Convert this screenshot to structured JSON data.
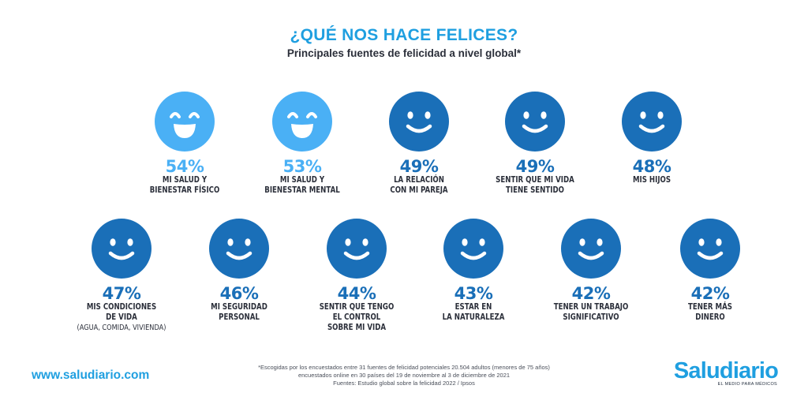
{
  "title": "¿QUÉ NOS HACE FELICES?",
  "subtitle": "Principales fuentes de felicidad a nivel global*",
  "colors": {
    "light": "#4ab0f5",
    "dark": "#1a6fb8",
    "accent": "#1f9fe0"
  },
  "items": [
    {
      "pct": "54%",
      "line1": "MI SALUD Y",
      "line2": "BIENESTAR FÍSICO",
      "line3": "",
      "note": "",
      "style": "big-smile",
      "icon": "laughing-face-icon"
    },
    {
      "pct": "53%",
      "line1": "MI SALUD Y",
      "line2": "BIENESTAR MENTAL",
      "line3": "",
      "note": "",
      "style": "big-smile",
      "icon": "laughing-face-icon"
    },
    {
      "pct": "49%",
      "line1": "LA RELACIÓN",
      "line2": "CON MI PAREJA",
      "line3": "",
      "note": "",
      "style": "smile",
      "icon": "smiley-face-icon"
    },
    {
      "pct": "49%",
      "line1": "SENTIR QUE MI VIDA",
      "line2": "TIENE SENTIDO",
      "line3": "",
      "note": "",
      "style": "smile",
      "icon": "smiley-face-icon"
    },
    {
      "pct": "48%",
      "line1": "MIS HIJOS",
      "line2": "",
      "line3": "",
      "note": "",
      "style": "smile",
      "icon": "smiley-face-icon"
    },
    {
      "pct": "47%",
      "line1": "MIS CONDICIONES",
      "line2": "DE VIDA",
      "line3": "",
      "note": "(AGUA, COMIDA, VIVIENDA)",
      "style": "smile",
      "icon": "smiley-face-icon"
    },
    {
      "pct": "46%",
      "line1": "MI SEGURIDAD",
      "line2": "PERSONAL",
      "line3": "",
      "note": "",
      "style": "smile",
      "icon": "smiley-face-icon"
    },
    {
      "pct": "44%",
      "line1": "SENTIR QUE TENGO",
      "line2": "EL CONTROL",
      "line3": "SOBRE MI VIDA",
      "note": "",
      "style": "smile",
      "icon": "smiley-face-icon"
    },
    {
      "pct": "43%",
      "line1": "ESTAR EN",
      "line2": "LA NATURALEZA",
      "line3": "",
      "note": "",
      "style": "smile",
      "icon": "smiley-face-icon"
    },
    {
      "pct": "42%",
      "line1": "TENER UN TRABAJO",
      "line2": "SIGNIFICATIVO",
      "line3": "",
      "note": "",
      "style": "smile",
      "icon": "smiley-face-icon"
    },
    {
      "pct": "42%",
      "line1": "TENER MÁS",
      "line2": "DINERO",
      "line3": "",
      "note": "",
      "style": "smile",
      "icon": "smiley-face-icon"
    }
  ],
  "footer": {
    "website": "www.saludiario.com",
    "footnote1": "*Escogidas por los encuestados entre 31 fuentes de felicidad potenciales 20.504 adultos (menores de 75 años)",
    "footnote2": "encuestados online en 30 países del 19 de noviembre al 3 de diciembre de 2021",
    "footnote3": "Fuentes: Estudio global sobre la felicidad 2022 / Ipsos",
    "brand": "Saludiario",
    "tagline": "EL MEDIO PARA MÉDICOS"
  }
}
